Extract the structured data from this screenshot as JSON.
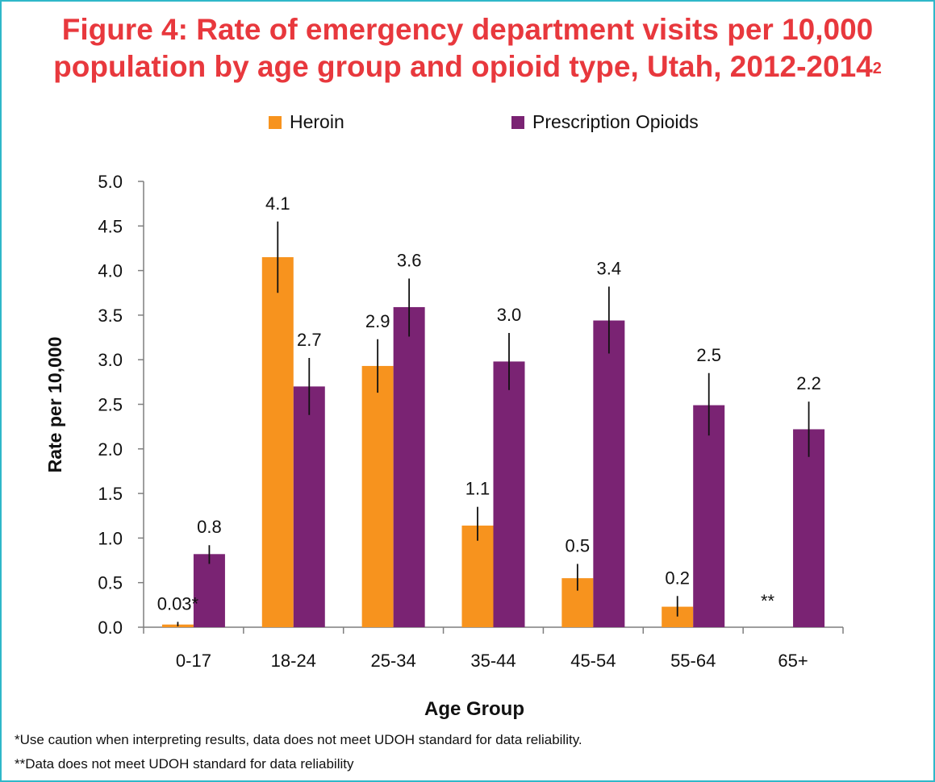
{
  "title": "Figure 4: Rate of emergency department visits per 10,000",
  "title_line2": "population by age group and opioid type, Utah, 2012-2014",
  "title_superscript": "2",
  "colors": {
    "title": "#e8383d",
    "heroin": "#f7931e",
    "prescription_opioids": "#7a2373",
    "frame": "#2fb8c9"
  },
  "chart_data": {
    "type": "bar",
    "categories": [
      "0-17",
      "18-24",
      "25-34",
      "35-44",
      "45-54",
      "55-64",
      "65+"
    ],
    "series": [
      {
        "name": "Heroin",
        "values": [
          0.03,
          4.15,
          2.93,
          1.14,
          0.55,
          0.23,
          null
        ],
        "error_low": [
          0.01,
          3.75,
          2.63,
          0.97,
          0.41,
          0.12,
          null
        ],
        "error_high": [
          0.06,
          4.55,
          3.23,
          1.35,
          0.71,
          0.35,
          null
        ],
        "labels": [
          "0.03*",
          "4.1",
          "2.9",
          "1.1",
          "0.5",
          "0.2",
          "**"
        ]
      },
      {
        "name": "Prescription Opioids",
        "values": [
          0.82,
          2.7,
          3.59,
          2.98,
          3.44,
          2.49,
          2.22
        ],
        "error_low": [
          0.71,
          2.38,
          3.26,
          2.66,
          3.07,
          2.15,
          1.91
        ],
        "error_high": [
          0.92,
          3.02,
          3.91,
          3.3,
          3.82,
          2.85,
          2.53
        ],
        "labels": [
          "0.8",
          "2.7",
          "3.6",
          "3.0",
          "3.4",
          "2.5",
          "2.2"
        ]
      }
    ],
    "ylim": [
      0,
      5
    ],
    "yticks": [
      "0.0",
      "0.5",
      "1.0",
      "1.5",
      "2.0",
      "2.5",
      "3.0",
      "3.5",
      "4.0",
      "4.5",
      "5.0"
    ],
    "xlabel": "Age Group",
    "ylabel": "Rate per 10,000",
    "grid": false,
    "legend": "top"
  },
  "footnotes": [
    "*Use caution when interpreting results, data does not meet UDOH standard for data reliability.",
    "**Data does not meet UDOH standard for data reliability"
  ]
}
